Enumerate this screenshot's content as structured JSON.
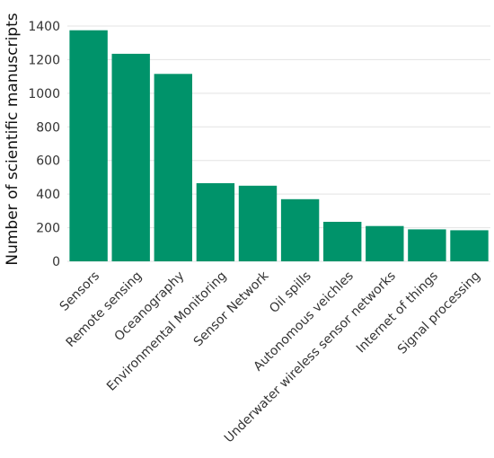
{
  "chart_data": {
    "type": "bar",
    "title": "",
    "xlabel": "",
    "ylabel": "Number of scientific manuscripts",
    "categories": [
      "Sensors",
      "Remote sensing",
      "Oceanography",
      "Environmental Monitoring",
      "Sensor Network",
      "Oil spills",
      "Autonomous veichles",
      "Underwater wireless sensor networks",
      "Internet of things",
      "Signal processing"
    ],
    "values": [
      1375,
      1235,
      1115,
      465,
      450,
      370,
      235,
      210,
      190,
      185
    ],
    "ylim": [
      0,
      1400
    ],
    "yticks": [
      0,
      200,
      400,
      600,
      800,
      1000,
      1200,
      1400
    ],
    "grid": true,
    "bar_color": "#00936a"
  }
}
